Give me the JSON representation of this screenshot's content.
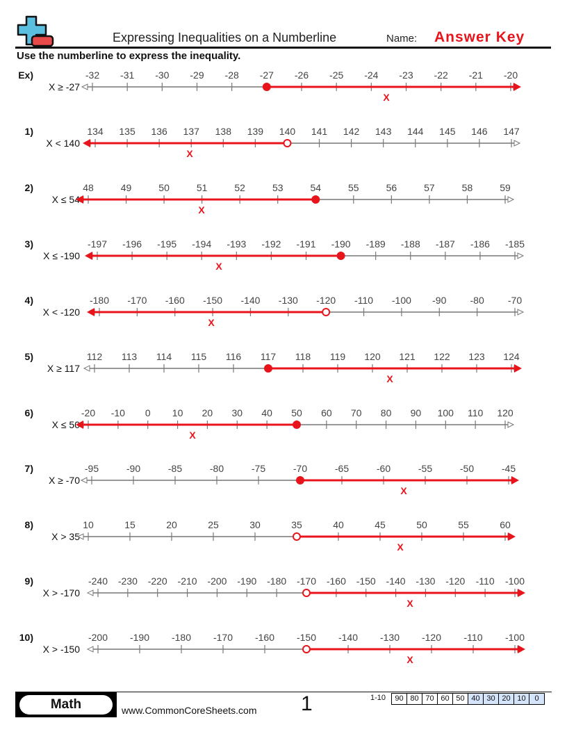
{
  "header": {
    "title": "Expressing Inequalities on a Numberline",
    "name_label": "Name:",
    "name_value": "Answer Key",
    "instructions": "Use the numberline to express the inequality."
  },
  "colors": {
    "answer": "#e8141b",
    "line": "#777777",
    "logo_plus": "#5bbfe0",
    "logo_minus": "#e84a4a",
    "score_highlight": "#d4e4fb"
  },
  "problems": [
    {
      "label": "Ex)",
      "inequality": "X ≥ -27",
      "ticks": [
        "-32",
        "-31",
        "-30",
        "-29",
        "-28",
        "-27",
        "-26",
        "-25",
        "-24",
        "-23",
        "-22",
        "-21",
        "-20"
      ],
      "point": "-27",
      "closed": true,
      "direction": "right",
      "mark": "X"
    },
    {
      "label": "1)",
      "inequality": "X < 140",
      "ticks": [
        "134",
        "135",
        "136",
        "137",
        "138",
        "139",
        "140",
        "141",
        "142",
        "143",
        "144",
        "145",
        "146",
        "147"
      ],
      "point": "140",
      "closed": false,
      "direction": "left",
      "mark": "X"
    },
    {
      "label": "2)",
      "inequality": "X ≤ 54",
      "ticks": [
        "48",
        "49",
        "50",
        "51",
        "52",
        "53",
        "54",
        "55",
        "56",
        "57",
        "58",
        "59"
      ],
      "point": "54",
      "closed": true,
      "direction": "left",
      "mark": "X"
    },
    {
      "label": "3)",
      "inequality": "X ≤ -190",
      "ticks": [
        "-197",
        "-196",
        "-195",
        "-194",
        "-193",
        "-192",
        "-191",
        "-190",
        "-189",
        "-188",
        "-187",
        "-186",
        "-185"
      ],
      "point": "-190",
      "closed": true,
      "direction": "left",
      "mark": "X"
    },
    {
      "label": "4)",
      "inequality": "X < -120",
      "ticks": [
        "-180",
        "-170",
        "-160",
        "-150",
        "-140",
        "-130",
        "-120",
        "-110",
        "-100",
        "-90",
        "-80",
        "-70"
      ],
      "point": "-120",
      "closed": false,
      "direction": "left",
      "mark": "X"
    },
    {
      "label": "5)",
      "inequality": "X ≥ 117",
      "ticks": [
        "112",
        "113",
        "114",
        "115",
        "116",
        "117",
        "118",
        "119",
        "120",
        "121",
        "122",
        "123",
        "124"
      ],
      "point": "117",
      "closed": true,
      "direction": "right",
      "mark": "X"
    },
    {
      "label": "6)",
      "inequality": "X ≤ 50",
      "ticks": [
        "-20",
        "-10",
        "0",
        "10",
        "20",
        "30",
        "40",
        "50",
        "60",
        "70",
        "80",
        "90",
        "100",
        "110",
        "120"
      ],
      "point": "50",
      "closed": true,
      "direction": "left",
      "mark": "X"
    },
    {
      "label": "7)",
      "inequality": "X ≥ -70",
      "ticks": [
        "-95",
        "-90",
        "-85",
        "-80",
        "-75",
        "-70",
        "-65",
        "-60",
        "-55",
        "-50",
        "-45"
      ],
      "point": "-70",
      "closed": true,
      "direction": "right",
      "mark": "X"
    },
    {
      "label": "8)",
      "inequality": "X > 35",
      "ticks": [
        "10",
        "15",
        "20",
        "25",
        "30",
        "35",
        "40",
        "45",
        "50",
        "55",
        "60"
      ],
      "point": "35",
      "closed": false,
      "direction": "right",
      "mark": "X"
    },
    {
      "label": "9)",
      "inequality": "X > -170",
      "ticks": [
        "-240",
        "-230",
        "-220",
        "-210",
        "-200",
        "-190",
        "-180",
        "-170",
        "-160",
        "-150",
        "-140",
        "-130",
        "-120",
        "-110",
        "-100"
      ],
      "point": "-170",
      "closed": false,
      "direction": "right",
      "mark": "X"
    },
    {
      "label": "10)",
      "inequality": "X > -150",
      "ticks": [
        "-200",
        "-190",
        "-180",
        "-170",
        "-160",
        "-150",
        "-140",
        "-130",
        "-120",
        "-110",
        "-100"
      ],
      "point": "-150",
      "closed": false,
      "direction": "right",
      "mark": "X"
    }
  ],
  "footer": {
    "subject": "Math",
    "website": "www.CommonCoreSheets.com",
    "page": "1",
    "score_label": "1-10",
    "scores": [
      "90",
      "80",
      "70",
      "60",
      "50",
      "40",
      "30",
      "20",
      "10",
      "0"
    ],
    "highlighted_from": "40"
  }
}
